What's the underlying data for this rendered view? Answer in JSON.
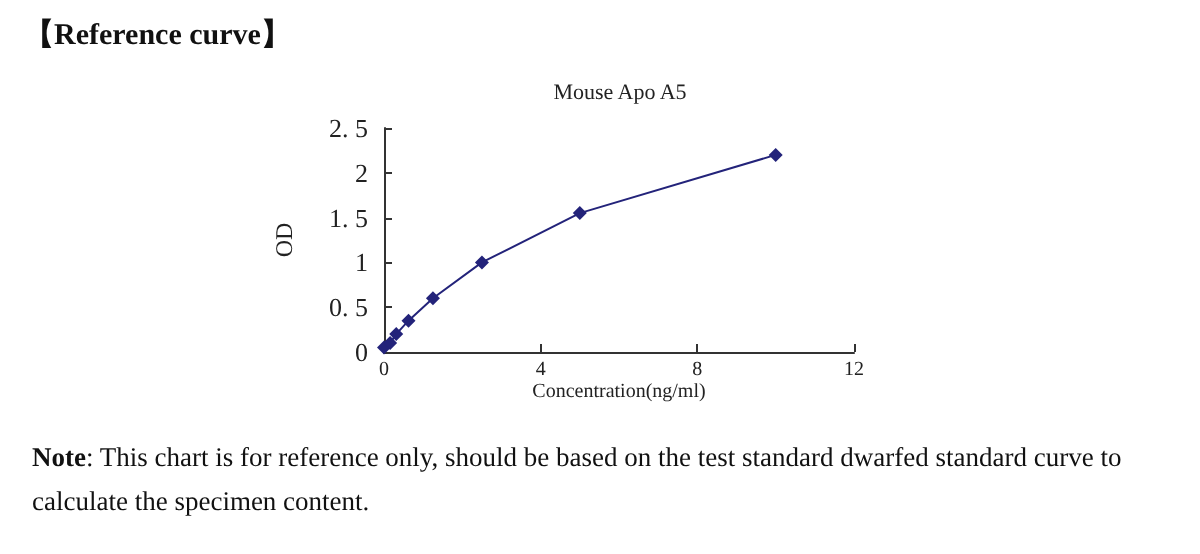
{
  "chart_data": {
    "type": "line",
    "title": "Mouse Apo A5",
    "xlabel": "Concentration(ng/ml)",
    "ylabel": "OD",
    "annotations": [
      "【Reference curve】",
      "Note: This chart is for reference only, should be based on the test standard dwarfed standard curve to calculate the specimen content."
    ],
    "x": [
      0,
      0.156,
      0.312,
      0.625,
      1.25,
      2.5,
      5,
      10
    ],
    "series": [
      {
        "color": "#23237a",
        "values": [
          0.05,
          0.1,
          0.2,
          0.35,
          0.6,
          1.0,
          1.55,
          2.2
        ]
      }
    ],
    "xlim": [
      0,
      12
    ],
    "xticks": [
      0,
      4,
      8,
      12
    ],
    "ylim": [
      0,
      2.5
    ],
    "yticks": [
      0,
      {
        "value": 0.5,
        "label": "0. 5"
      },
      1,
      {
        "value": 1.5,
        "label": "1. 5"
      },
      2,
      {
        "value": 2.5,
        "label": "2. 5"
      }
    ],
    "grid": false,
    "marker": "diamond",
    "line_style": "solid"
  }
}
